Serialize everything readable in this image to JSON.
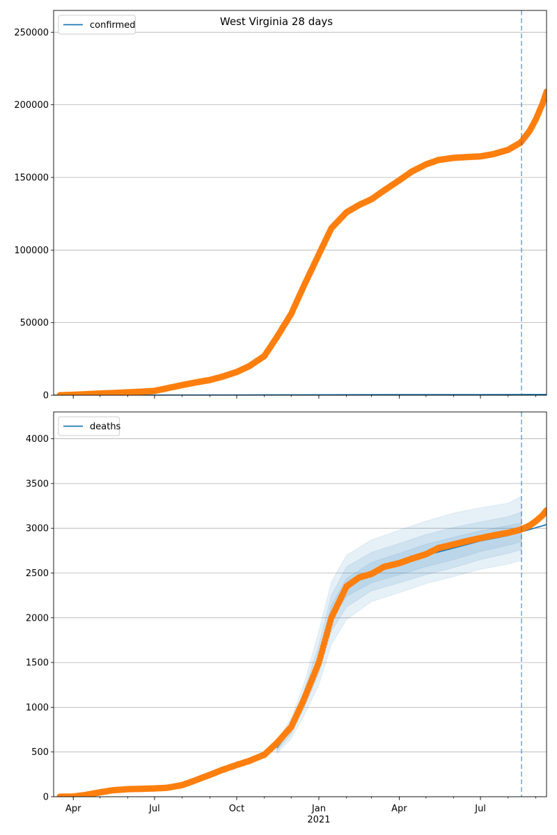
{
  "chart_data": [
    {
      "type": "line",
      "title": "West Virginia 28 days",
      "legend": [
        "confirmed"
      ],
      "legend_position": "top-left",
      "grid": "y",
      "xlim": [
        "2020-03-10",
        "2021-09-13"
      ],
      "ylim": [
        0,
        265000
      ],
      "yticks": [
        0,
        50000,
        100000,
        150000,
        200000,
        250000
      ],
      "ytick_labels": [
        "0",
        "50000",
        "100000",
        "150000",
        "200000",
        "250000"
      ],
      "forecast_start": "2021-08-16",
      "series": [
        {
          "name": "confirmed",
          "style": "line",
          "color": "#1f77b4",
          "points": [
            [
              "2020-03-10",
              0
            ],
            [
              "2020-07-01",
              80
            ],
            [
              "2020-10-01",
              180
            ],
            [
              "2021-01-01",
              300
            ],
            [
              "2021-04-01",
              380
            ],
            [
              "2021-07-01",
              450
            ],
            [
              "2021-08-16",
              500
            ],
            [
              "2021-09-13",
              550
            ]
          ]
        },
        {
          "style": "markers",
          "color": "#ff7f0e",
          "points": [
            [
              "2020-03-17",
              10
            ],
            [
              "2020-04-01",
              300
            ],
            [
              "2020-04-15",
              700
            ],
            [
              "2020-05-01",
              1200
            ],
            [
              "2020-05-15",
              1500
            ],
            [
              "2020-06-01",
              2000
            ],
            [
              "2020-06-15",
              2400
            ],
            [
              "2020-07-01",
              3000
            ],
            [
              "2020-07-15",
              4800
            ],
            [
              "2020-08-01",
              7000
            ],
            [
              "2020-08-15",
              8700
            ],
            [
              "2020-09-01",
              10500
            ],
            [
              "2020-09-15",
              12800
            ],
            [
              "2020-10-01",
              16000
            ],
            [
              "2020-10-15",
              20000
            ],
            [
              "2020-11-01",
              27000
            ],
            [
              "2020-11-15",
              40000
            ],
            [
              "2020-12-01",
              56000
            ],
            [
              "2020-12-15",
              75000
            ],
            [
              "2021-01-01",
              97000
            ],
            [
              "2021-01-15",
              115000
            ],
            [
              "2021-02-01",
              126000
            ],
            [
              "2021-02-15",
              131000
            ],
            [
              "2021-03-01",
              135000
            ],
            [
              "2021-03-15",
              141000
            ],
            [
              "2021-04-01",
              148000
            ],
            [
              "2021-04-15",
              154000
            ],
            [
              "2021-05-01",
              159000
            ],
            [
              "2021-05-15",
              162000
            ],
            [
              "2021-06-01",
              163500
            ],
            [
              "2021-06-15",
              164000
            ],
            [
              "2021-07-01",
              164500
            ],
            [
              "2021-07-15",
              166000
            ],
            [
              "2021-08-01",
              169000
            ],
            [
              "2021-08-15",
              174000
            ],
            [
              "2021-08-25",
              182000
            ],
            [
              "2021-09-01",
              190000
            ],
            [
              "2021-09-08",
              200000
            ],
            [
              "2021-09-13",
              209000
            ]
          ]
        }
      ]
    },
    {
      "type": "line",
      "legend": [
        "deaths"
      ],
      "legend_position": "top-left",
      "grid": "y",
      "xlim": [
        "2020-03-10",
        "2021-09-13"
      ],
      "ylim": [
        0,
        4300
      ],
      "yticks": [
        0,
        500,
        1000,
        1500,
        2000,
        2500,
        3000,
        3500,
        4000
      ],
      "ytick_labels": [
        "0",
        "500",
        "1000",
        "1500",
        "2000",
        "2500",
        "3000",
        "3500",
        "4000"
      ],
      "xticks": [
        "2020-04-01",
        "2020-07-01",
        "2020-10-01",
        "2021-01-01",
        "2021-04-01",
        "2021-07-01"
      ],
      "xtick_labels": [
        "Apr",
        "Jul",
        "Oct",
        "Jan",
        "Apr",
        "Jul"
      ],
      "xtick_sublabel": "2021",
      "forecast_start": "2021-08-16",
      "bands": [
        {
          "x": [
            "2020-11-15",
            "2020-12-01",
            "2020-12-15",
            "2021-01-01",
            "2021-01-15",
            "2021-02-01",
            "2021-03-01",
            "2021-04-01",
            "2021-05-01",
            "2021-06-01",
            "2021-07-01",
            "2021-08-01",
            "2021-08-16"
          ],
          "lower": [
            480,
            650,
            900,
            1250,
            1700,
            1980,
            2180,
            2280,
            2380,
            2460,
            2540,
            2600,
            2640
          ],
          "upper": [
            620,
            880,
            1250,
            1850,
            2400,
            2700,
            2870,
            2980,
            3080,
            3170,
            3230,
            3280,
            3360
          ]
        },
        {
          "x": [
            "2020-11-15",
            "2020-12-01",
            "2020-12-15",
            "2021-01-01",
            "2021-01-15",
            "2021-02-01",
            "2021-03-01",
            "2021-04-01",
            "2021-05-01",
            "2021-06-01",
            "2021-07-01",
            "2021-08-01",
            "2021-08-16"
          ],
          "lower": [
            510,
            700,
            980,
            1380,
            1850,
            2120,
            2300,
            2390,
            2480,
            2560,
            2650,
            2720,
            2760
          ],
          "upper": [
            590,
            830,
            1170,
            1700,
            2250,
            2570,
            2730,
            2830,
            2930,
            3010,
            3070,
            3130,
            3180
          ]
        },
        {
          "x": [
            "2020-11-15",
            "2020-12-01",
            "2020-12-15",
            "2021-01-01",
            "2021-01-15",
            "2021-02-01",
            "2021-03-01",
            "2021-04-01",
            "2021-05-01",
            "2021-06-01",
            "2021-07-01",
            "2021-08-01",
            "2021-08-16"
          ],
          "lower": [
            530,
            740,
            1050,
            1470,
            1980,
            2240,
            2390,
            2480,
            2570,
            2650,
            2740,
            2810,
            2850
          ],
          "upper": [
            570,
            790,
            1110,
            1600,
            2140,
            2440,
            2620,
            2720,
            2820,
            2900,
            2970,
            3030,
            3060
          ]
        }
      ],
      "series": [
        {
          "name": "deaths",
          "style": "line",
          "color": "#1f77b4",
          "points": [
            [
              "2020-11-15",
              550
            ],
            [
              "2020-12-01",
              760
            ],
            [
              "2020-12-15",
              1080
            ],
            [
              "2021-01-01",
              1530
            ],
            [
              "2021-01-15",
              2060
            ],
            [
              "2021-02-01",
              2340
            ],
            [
              "2021-03-01",
              2500
            ],
            [
              "2021-04-01",
              2600
            ],
            [
              "2021-05-01",
              2700
            ],
            [
              "2021-06-01",
              2780
            ],
            [
              "2021-07-01",
              2860
            ],
            [
              "2021-08-01",
              2920
            ],
            [
              "2021-08-16",
              2960
            ],
            [
              "2021-09-13",
              3040
            ]
          ]
        },
        {
          "style": "markers",
          "color": "#ff7f0e",
          "points": [
            [
              "2020-03-17",
              0
            ],
            [
              "2020-04-01",
              2
            ],
            [
              "2020-04-15",
              20
            ],
            [
              "2020-05-01",
              50
            ],
            [
              "2020-05-15",
              72
            ],
            [
              "2020-06-01",
              85
            ],
            [
              "2020-06-15",
              88
            ],
            [
              "2020-07-01",
              93
            ],
            [
              "2020-07-15",
              100
            ],
            [
              "2020-08-01",
              130
            ],
            [
              "2020-08-15",
              180
            ],
            [
              "2020-09-01",
              245
            ],
            [
              "2020-09-15",
              300
            ],
            [
              "2020-10-01",
              355
            ],
            [
              "2020-10-15",
              400
            ],
            [
              "2020-11-01",
              470
            ],
            [
              "2020-11-15",
              600
            ],
            [
              "2020-12-01",
              780
            ],
            [
              "2020-12-15",
              1080
            ],
            [
              "2021-01-01",
              1500
            ],
            [
              "2021-01-15",
              2000
            ],
            [
              "2021-02-01",
              2350
            ],
            [
              "2021-02-15",
              2450
            ],
            [
              "2021-03-01",
              2490
            ],
            [
              "2021-03-15",
              2570
            ],
            [
              "2021-04-01",
              2610
            ],
            [
              "2021-04-15",
              2660
            ],
            [
              "2021-05-01",
              2710
            ],
            [
              "2021-05-15",
              2780
            ],
            [
              "2021-06-01",
              2820
            ],
            [
              "2021-06-15",
              2855
            ],
            [
              "2021-07-01",
              2890
            ],
            [
              "2021-07-15",
              2920
            ],
            [
              "2021-08-01",
              2950
            ],
            [
              "2021-08-15",
              2985
            ],
            [
              "2021-08-25",
              3030
            ],
            [
              "2021-09-01",
              3080
            ],
            [
              "2021-09-08",
              3140
            ],
            [
              "2021-09-13",
              3200
            ]
          ]
        }
      ]
    }
  ]
}
